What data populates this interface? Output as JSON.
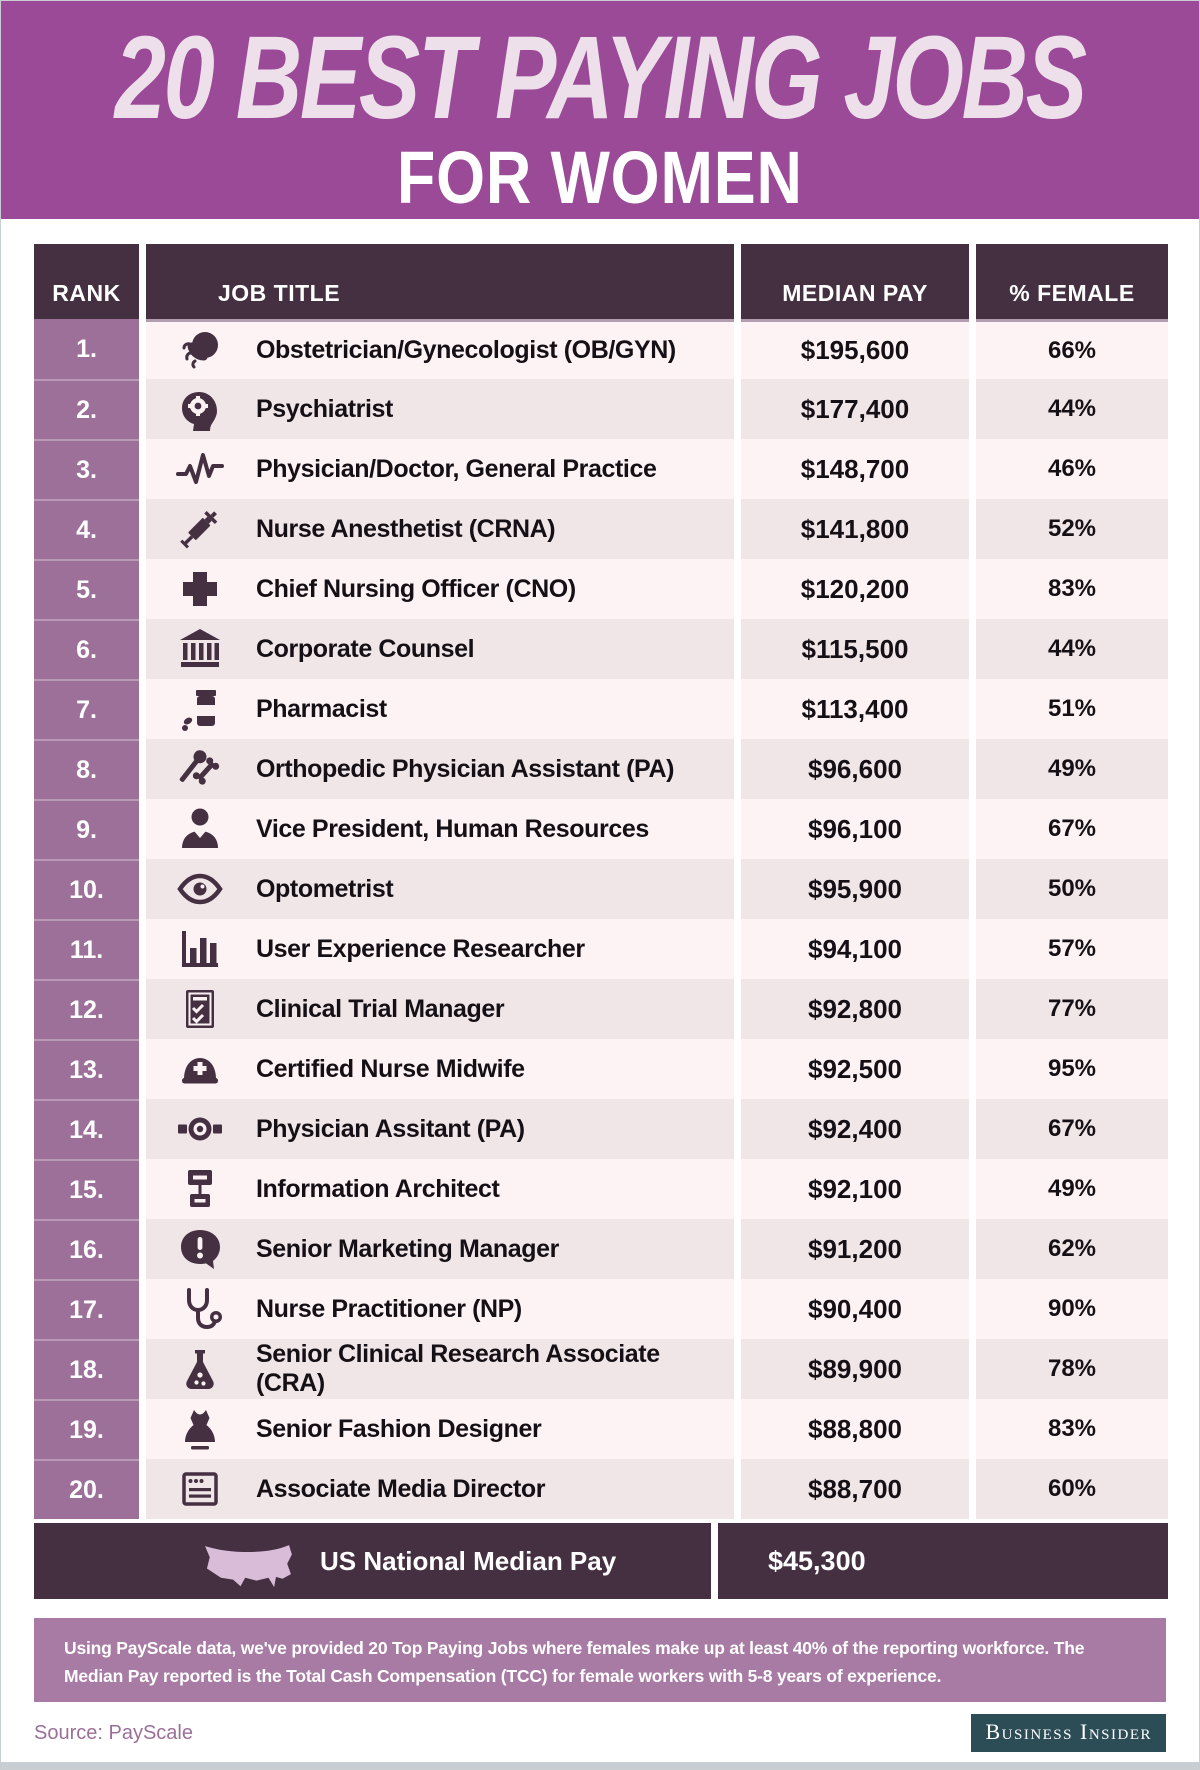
{
  "header": {
    "title_line1": "20 BEST PAYING JOBS",
    "title_line2": "FOR WOMEN"
  },
  "table": {
    "columns": {
      "rank": "RANK",
      "job": "JOB TITLE",
      "pay": "MEDIAN PAY",
      "female": "% FEMALE"
    },
    "rows": [
      {
        "rank": "1.",
        "icon": "fetus-icon",
        "job": "Obstetrician/Gynecologist (OB/GYN)",
        "pay": "$195,600",
        "female": "66%"
      },
      {
        "rank": "2.",
        "icon": "psychiatrist-head-gear-icon",
        "job": "Psychiatrist",
        "pay": "$177,400",
        "female": "44%"
      },
      {
        "rank": "3.",
        "icon": "heartbeat-icon",
        "job": "Physician/Doctor, General Practice",
        "pay": "$148,700",
        "female": "46%"
      },
      {
        "rank": "4.",
        "icon": "syringe-icon",
        "job": "Nurse Anesthetist (CRNA)",
        "pay": "$141,800",
        "female": "52%"
      },
      {
        "rank": "5.",
        "icon": "medical-cross-icon",
        "job": "Chief Nursing Officer (CNO)",
        "pay": "$120,200",
        "female": "83%"
      },
      {
        "rank": "6.",
        "icon": "courthouse-icon",
        "job": "Corporate Counsel",
        "pay": "$115,500",
        "female": "44%"
      },
      {
        "rank": "7.",
        "icon": "pill-bottle-icon",
        "job": "Pharmacist",
        "pay": "$113,400",
        "female": "51%"
      },
      {
        "rank": "8.",
        "icon": "bone-hammer-icon",
        "job": "Orthopedic Physician Assistant (PA)",
        "pay": "$96,600",
        "female": "49%"
      },
      {
        "rank": "9.",
        "icon": "person-icon",
        "job": "Vice President, Human Resources",
        "pay": "$96,100",
        "female": "67%"
      },
      {
        "rank": "10.",
        "icon": "eye-icon",
        "job": "Optometrist",
        "pay": "$95,900",
        "female": "50%"
      },
      {
        "rank": "11.",
        "icon": "bar-chart-icon",
        "job": "User Experience Researcher",
        "pay": "$94,100",
        "female": "57%"
      },
      {
        "rank": "12.",
        "icon": "clipboard-check-icon",
        "job": "Clinical Trial Manager",
        "pay": "$92,800",
        "female": "77%"
      },
      {
        "rank": "13.",
        "icon": "nurse-cap-icon",
        "job": "Certified Nurse Midwife",
        "pay": "$92,500",
        "female": "95%"
      },
      {
        "rank": "14.",
        "icon": "head-mirror-icon",
        "job": "Physician Assitant (PA)",
        "pay": "$92,400",
        "female": "67%"
      },
      {
        "rank": "15.",
        "icon": "sitemap-icon",
        "job": "Information Architect",
        "pay": "$92,100",
        "female": "49%"
      },
      {
        "rank": "16.",
        "icon": "speech-bubble-exclaim-icon",
        "job": "Senior Marketing Manager",
        "pay": "$91,200",
        "female": "62%"
      },
      {
        "rank": "17.",
        "icon": "stethoscope-icon",
        "job": "Nurse Practitioner (NP)",
        "pay": "$90,400",
        "female": "90%"
      },
      {
        "rank": "18.",
        "icon": "flask-icon",
        "job": "Senior Clinical Research Associate (CRA)",
        "pay": "$89,900",
        "female": "78%"
      },
      {
        "rank": "19.",
        "icon": "dress-icon",
        "job": "Senior Fashion Designer",
        "pay": "$88,800",
        "female": "83%"
      },
      {
        "rank": "20.",
        "icon": "media-window-icon",
        "job": "Associate Media Director",
        "pay": "$88,700",
        "female": "60%"
      }
    ],
    "footer": {
      "icon": "us-map-icon",
      "label": "US National Median Pay",
      "pay": "$45,300"
    }
  },
  "note": "Using PayScale data, we've provided 20 Top Paying Jobs where females make up at least 40% of the reporting workforce. The Median Pay reported is the Total Cash Compensation (TCC) for female workers with 5-8 years of experience.",
  "source": "Source: PayScale",
  "brand": "Business Insider",
  "colors": {
    "hero_purple": "#9a4a97",
    "header_dark_plum": "#443041",
    "rank_mauve": "#9c7099",
    "row_light": "#fdf3f4",
    "row_dark": "#f0e5e7",
    "note_purple": "#a87ba4",
    "source_text": "#9b6f99",
    "brand_box": "#2d4d56",
    "title_text": "#eee0ea"
  },
  "chart_data": {
    "type": "table",
    "title": "20 Best Paying Jobs for Women",
    "columns": [
      "Rank",
      "Job Title",
      "Median Pay (USD)",
      "% Female"
    ],
    "categories": [
      "Obstetrician/Gynecologist (OB/GYN)",
      "Psychiatrist",
      "Physician/Doctor, General Practice",
      "Nurse Anesthetist (CRNA)",
      "Chief Nursing Officer (CNO)",
      "Corporate Counsel",
      "Pharmacist",
      "Orthopedic Physician Assistant (PA)",
      "Vice President, Human Resources",
      "Optometrist",
      "User Experience Researcher",
      "Clinical Trial Manager",
      "Certified Nurse Midwife",
      "Physician Assitant (PA)",
      "Information Architect",
      "Senior Marketing Manager",
      "Nurse Practitioner (NP)",
      "Senior Clinical Research Associate (CRA)",
      "Senior Fashion Designer",
      "Associate Media Director"
    ],
    "series": [
      {
        "name": "Median Pay (USD)",
        "values": [
          195600,
          177400,
          148700,
          141800,
          120200,
          115500,
          113400,
          96600,
          96100,
          95900,
          94100,
          92800,
          92500,
          92400,
          92100,
          91200,
          90400,
          89900,
          88800,
          88700
        ]
      },
      {
        "name": "% Female",
        "values": [
          66,
          44,
          46,
          52,
          83,
          44,
          51,
          49,
          67,
          50,
          57,
          77,
          95,
          67,
          49,
          62,
          90,
          78,
          83,
          60
        ]
      }
    ],
    "reference_row": {
      "label": "US National Median Pay",
      "value": 45300
    }
  }
}
